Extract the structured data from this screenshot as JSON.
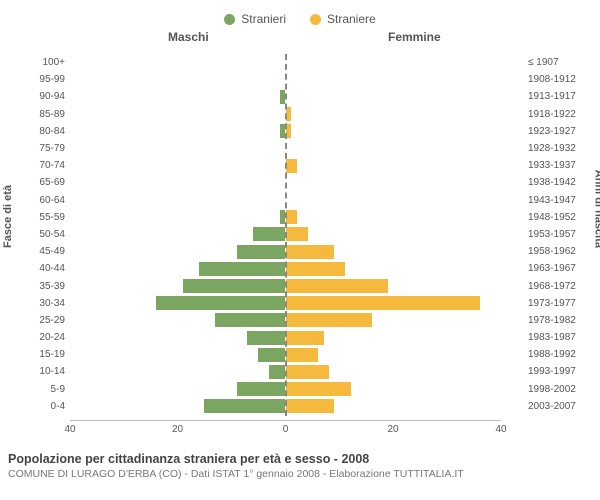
{
  "legend": {
    "male": {
      "label": "Stranieri",
      "color": "#7aa661"
    },
    "female": {
      "label": "Straniere",
      "color": "#f5b93e"
    }
  },
  "panel_titles": {
    "left": "Maschi",
    "right": "Femmine"
  },
  "axis_labels": {
    "left": "Fasce di età",
    "right": "Anni di nascita"
  },
  "chart": {
    "type": "population-pyramid",
    "x_max": 40,
    "x_ticks": [
      40,
      20,
      0,
      20,
      40
    ],
    "male_color": "#7aa661",
    "female_color": "#f5b93e",
    "center_line_color": "#888888",
    "tick_font_size": 10,
    "rows": [
      {
        "age": "100+",
        "birth": "≤ 1907",
        "m": 0,
        "f": 0
      },
      {
        "age": "95-99",
        "birth": "1908-1912",
        "m": 0,
        "f": 0
      },
      {
        "age": "90-94",
        "birth": "1913-1917",
        "m": 1,
        "f": 0
      },
      {
        "age": "85-89",
        "birth": "1918-1922",
        "m": 0,
        "f": 1
      },
      {
        "age": "80-84",
        "birth": "1923-1927",
        "m": 1,
        "f": 1
      },
      {
        "age": "75-79",
        "birth": "1928-1932",
        "m": 0,
        "f": 0
      },
      {
        "age": "70-74",
        "birth": "1933-1937",
        "m": 0,
        "f": 2
      },
      {
        "age": "65-69",
        "birth": "1938-1942",
        "m": 0,
        "f": 0
      },
      {
        "age": "60-64",
        "birth": "1943-1947",
        "m": 0,
        "f": 0
      },
      {
        "age": "55-59",
        "birth": "1948-1952",
        "m": 1,
        "f": 2
      },
      {
        "age": "50-54",
        "birth": "1953-1957",
        "m": 6,
        "f": 4
      },
      {
        "age": "45-49",
        "birth": "1958-1962",
        "m": 9,
        "f": 9
      },
      {
        "age": "40-44",
        "birth": "1963-1967",
        "m": 16,
        "f": 11
      },
      {
        "age": "35-39",
        "birth": "1968-1972",
        "m": 19,
        "f": 19
      },
      {
        "age": "30-34",
        "birth": "1973-1977",
        "m": 24,
        "f": 36
      },
      {
        "age": "25-29",
        "birth": "1978-1982",
        "m": 13,
        "f": 16
      },
      {
        "age": "20-24",
        "birth": "1983-1987",
        "m": 7,
        "f": 7
      },
      {
        "age": "15-19",
        "birth": "1988-1992",
        "m": 5,
        "f": 6
      },
      {
        "age": "10-14",
        "birth": "1993-1997",
        "m": 3,
        "f": 8
      },
      {
        "age": "5-9",
        "birth": "1998-2002",
        "m": 9,
        "f": 12
      },
      {
        "age": "0-4",
        "birth": "2003-2007",
        "m": 15,
        "f": 9
      }
    ]
  },
  "footer": {
    "title": "Popolazione per cittadinanza straniera per età e sesso - 2008",
    "subtitle": "COMUNE DI LURAGO D'ERBA (CO) - Dati ISTAT 1° gennaio 2008 - Elaborazione TUTTITALIA.IT"
  }
}
